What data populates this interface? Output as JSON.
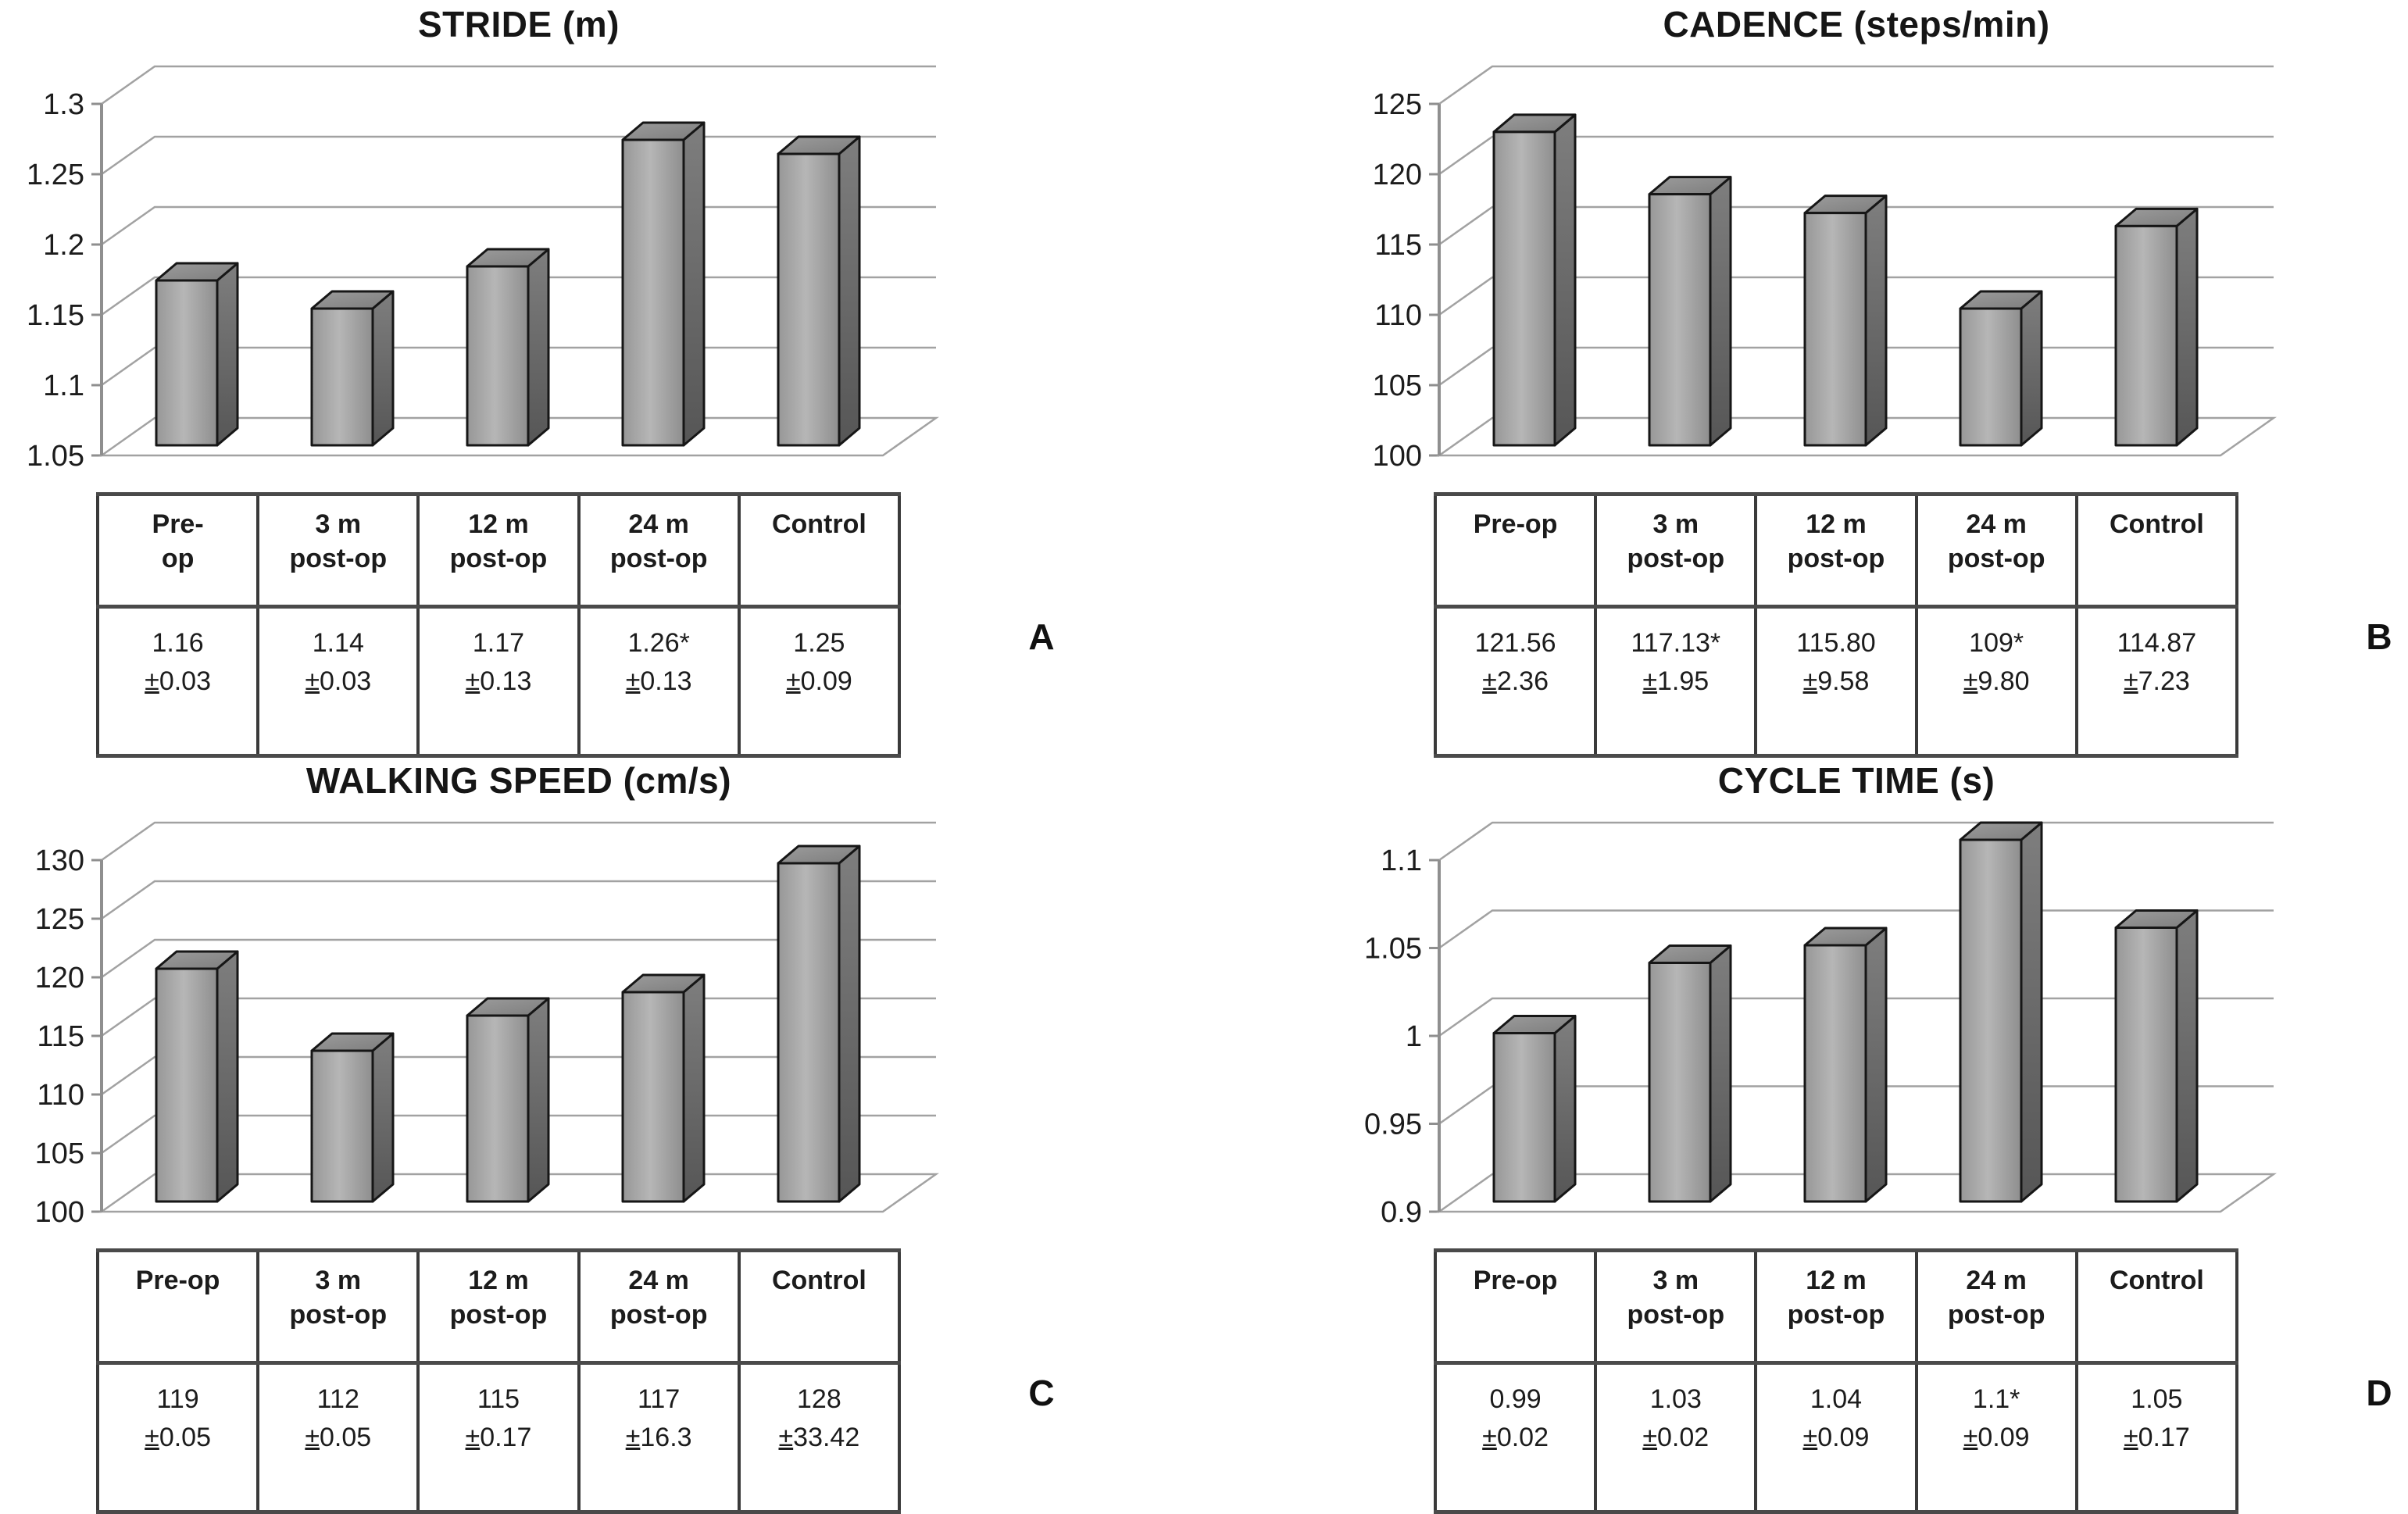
{
  "figure": {
    "background": "#ffffff",
    "style_colors": {
      "bar_front": "#a8a8a8",
      "bar_side": "#5e5e5e",
      "bar_top": "#8d8d8d",
      "bar_outline": "#161616",
      "gridline": "#a2a2a2",
      "axis": "#8f8f8f",
      "text": "#1c1c1c",
      "table_border": "#3a3a3a"
    }
  },
  "chart_data": [
    {
      "type": "bar",
      "panel_label": "A",
      "title": "STRIDE (m)",
      "xlabel": "",
      "ylabel": "stride (m)",
      "categories": [
        "Pre-op",
        "3 m post-op",
        "12 m post-op",
        "24 m post-op",
        "Control"
      ],
      "values": [
        1.16,
        1.14,
        1.17,
        1.26,
        1.25
      ],
      "ylim": [
        1.05,
        1.3
      ],
      "yticks": [
        "1.3",
        "1.25",
        "1.2",
        "1.15",
        "1.1",
        "1.05"
      ],
      "grid": true,
      "legend": "none",
      "header_lines": [
        [
          "Pre-",
          "op"
        ],
        [
          "3 m",
          "post-op"
        ],
        [
          "12 m",
          "post-op"
        ],
        [
          "24 m",
          "post-op"
        ],
        [
          "Control"
        ]
      ],
      "table_values": [
        "1.16",
        "1.14",
        "1.17",
        "1.26*",
        "1.25"
      ],
      "table_sd": [
        "±0.03",
        "±0.03",
        "±0.13",
        "±0.13",
        "±0.09"
      ]
    },
    {
      "type": "bar",
      "panel_label": "B",
      "title": "CADENCE (steps/min)",
      "xlabel": "",
      "ylabel": "cadence (steps/min)",
      "categories": [
        "Pre-op",
        "3 m post-op",
        "12 m post-op",
        "24 m post-op",
        "Control"
      ],
      "values": [
        121.56,
        117.13,
        115.8,
        109,
        114.87
      ],
      "ylim": [
        100,
        125
      ],
      "yticks": [
        "125",
        "120",
        "115",
        "110",
        "105",
        "100"
      ],
      "grid": true,
      "legend": "none",
      "header_lines": [
        [
          "Pre-op"
        ],
        [
          "3 m",
          "post-op"
        ],
        [
          "12 m",
          "post-op"
        ],
        [
          "24 m",
          "post-op"
        ],
        [
          "Control"
        ]
      ],
      "table_values": [
        "121.56",
        "117.13*",
        "115.80",
        "109*",
        "114.87"
      ],
      "table_sd": [
        "±2.36",
        "±1.95",
        "±9.58",
        "±9.80",
        "±7.23"
      ]
    },
    {
      "type": "bar",
      "panel_label": "C",
      "title": "WALKING SPEED (cm/s)",
      "xlabel": "",
      "ylabel": "walking speed (cm/s)",
      "categories": [
        "Pre-op",
        "3 m post-op",
        "12 m post-op",
        "24 m post-op",
        "Control"
      ],
      "values": [
        119,
        112,
        115,
        117,
        128
      ],
      "ylim": [
        100,
        130
      ],
      "yticks": [
        "130",
        "125",
        "120",
        "115",
        "110",
        "105",
        "100"
      ],
      "grid": true,
      "legend": "none",
      "header_lines": [
        [
          "Pre-op"
        ],
        [
          "3 m",
          "post-op"
        ],
        [
          "12 m",
          "post-op"
        ],
        [
          "24 m",
          "post-op"
        ],
        [
          "Control"
        ]
      ],
      "table_values": [
        "119",
        "112",
        "115",
        "117",
        "128"
      ],
      "table_sd": [
        "±0.05",
        "±0.05",
        "±0.17",
        "±16.3",
        "±33.42"
      ]
    },
    {
      "type": "bar",
      "panel_label": "D",
      "title": "CYCLE TIME (s)",
      "xlabel": "",
      "ylabel": "cycle time (s)",
      "categories": [
        "Pre-op",
        "3 m post-op",
        "12 m post-op",
        "24 m post-op",
        "Control"
      ],
      "values": [
        0.99,
        1.03,
        1.04,
        1.1,
        1.05
      ],
      "ylim": [
        0.9,
        1.1
      ],
      "yticks": [
        "1.1",
        "1.05",
        "1",
        "0.95",
        "0.9"
      ],
      "grid": true,
      "legend": "none",
      "header_lines": [
        [
          "Pre-op"
        ],
        [
          "3 m",
          "post-op"
        ],
        [
          "12 m",
          "post-op"
        ],
        [
          "24 m",
          "post-op"
        ],
        [
          "Control"
        ]
      ],
      "table_values": [
        "0.99",
        "1.03",
        "1.04",
        "1.1*",
        "1.05"
      ],
      "table_sd": [
        "±0.02",
        "±0.02",
        "±0.09",
        "±0.09",
        "±0.17"
      ]
    }
  ]
}
